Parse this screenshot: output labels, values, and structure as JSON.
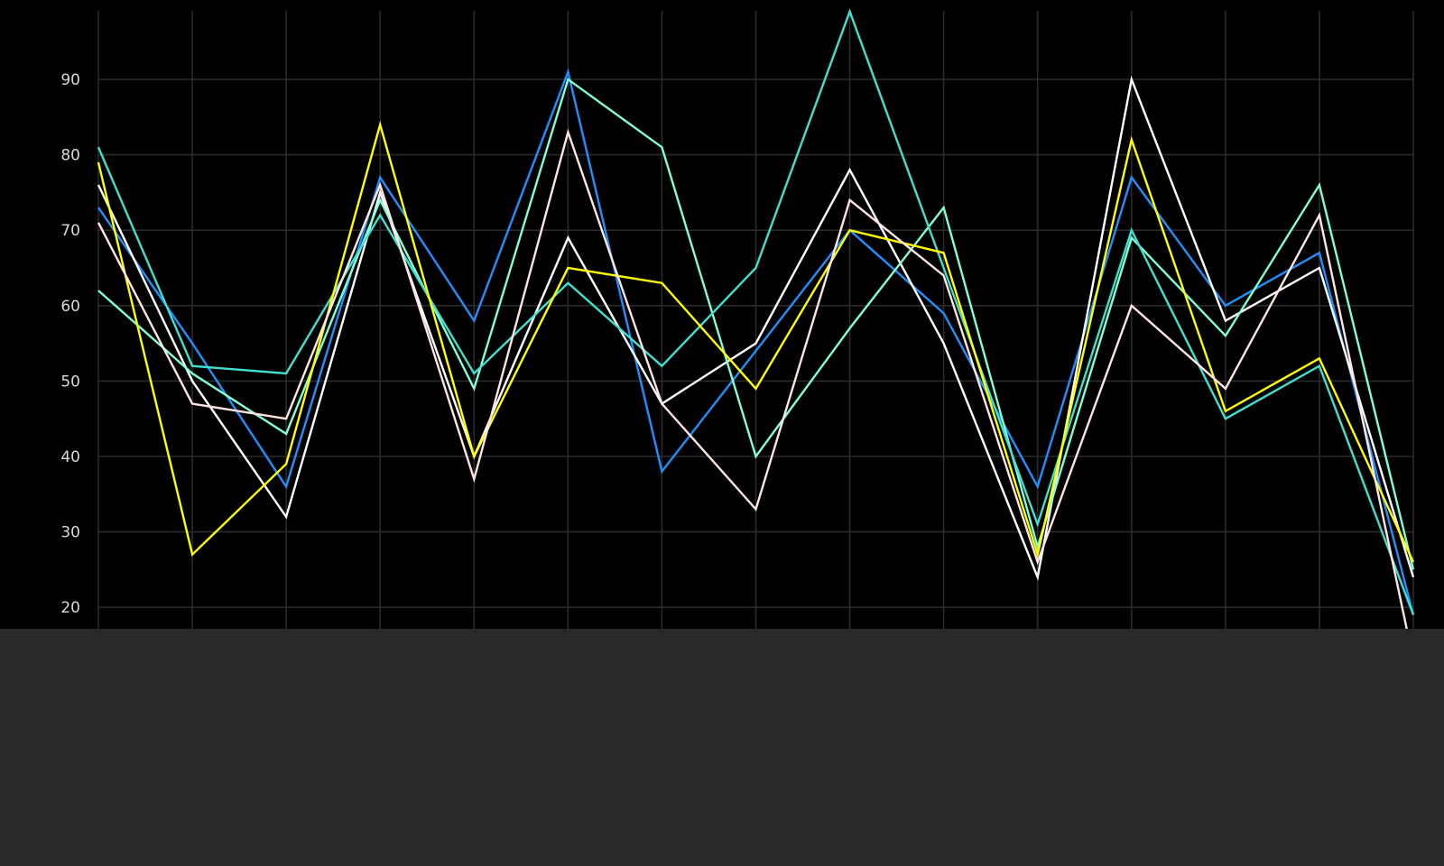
{
  "chart_data": {
    "type": "line",
    "x": [
      0,
      1,
      2,
      3,
      4,
      5,
      6,
      7,
      8,
      9,
      10,
      11,
      12,
      13,
      14
    ],
    "ylim": [
      13,
      99
    ],
    "y_ticks": [
      "20",
      "30",
      "40",
      "50",
      "60",
      "70",
      "80",
      "90"
    ],
    "grid": true,
    "series": [
      {
        "color": "#1e90ff",
        "values": [
          73,
          55,
          36,
          77,
          58,
          91,
          38,
          54,
          70,
          59,
          36,
          77,
          60,
          67,
          19
        ]
      },
      {
        "color": "#ffffff",
        "values": [
          76,
          50,
          32,
          75,
          40,
          69,
          47,
          55,
          78,
          55,
          24,
          90,
          58,
          65,
          24
        ]
      },
      {
        "color": "#7fffd4",
        "values": [
          62,
          51,
          43,
          74,
          49,
          90,
          81,
          40,
          57,
          73,
          28,
          69,
          56,
          76,
          25
        ]
      },
      {
        "color": "#40e0d0",
        "values": [
          81,
          52,
          51,
          72,
          51,
          63,
          52,
          65,
          99,
          65,
          31,
          70,
          45,
          52,
          19
        ]
      },
      {
        "color": "#ffff00",
        "values": [
          79,
          27,
          39,
          84,
          40,
          65,
          63,
          49,
          70,
          67,
          27,
          82,
          46,
          53,
          26
        ]
      },
      {
        "color": "#ffe4e1",
        "values": [
          71,
          47,
          45,
          76,
          37,
          83,
          47,
          33,
          74,
          64,
          26,
          60,
          49,
          72,
          13
        ]
      }
    ]
  }
}
